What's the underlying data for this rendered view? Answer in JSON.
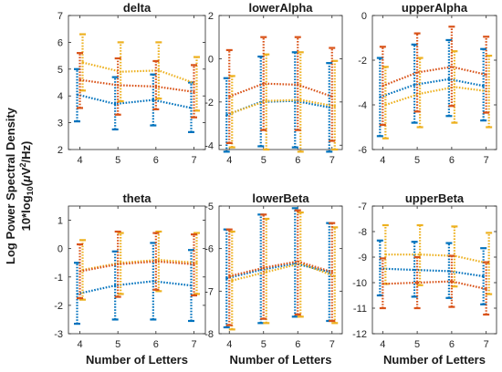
{
  "figure": {
    "ylabel_line1": "Log Power Spectral Density",
    "ylabel_line2": "10*log10(μV²/Hz)",
    "xlabel": "Number of Letters",
    "x_ticks": [
      "4",
      "5",
      "6",
      "7"
    ],
    "colors": {
      "blue": "#0072BD",
      "orange": "#D95319",
      "yellow": "#EDB120"
    }
  },
  "chart_data": [
    {
      "type": "line",
      "title": "delta",
      "xlabel": "",
      "ylabel": "",
      "x": [
        4,
        5,
        6,
        7
      ],
      "ylim": [
        2,
        7
      ],
      "yticks": [
        2,
        3,
        4,
        5,
        6,
        7
      ],
      "series": [
        {
          "color": "blue",
          "values": [
            4.05,
            3.7,
            3.85,
            3.55
          ],
          "lower": [
            3.05,
            2.75,
            2.9,
            2.65
          ],
          "upper": [
            5.0,
            4.7,
            4.8,
            4.5
          ]
        },
        {
          "color": "orange",
          "values": [
            4.6,
            4.4,
            4.35,
            4.15
          ],
          "lower": [
            3.55,
            3.3,
            3.5,
            3.2
          ],
          "upper": [
            5.6,
            5.4,
            5.3,
            5.15
          ]
        },
        {
          "color": "yellow",
          "values": [
            5.25,
            4.9,
            4.95,
            4.45
          ],
          "lower": [
            4.2,
            3.8,
            3.9,
            3.45
          ],
          "upper": [
            6.3,
            6.0,
            6.0,
            5.45
          ]
        }
      ]
    },
    {
      "type": "line",
      "title": "lowerAlpha",
      "xlabel": "",
      "ylabel": "",
      "x": [
        4,
        5,
        6,
        7
      ],
      "ylim": [
        -4.2,
        2
      ],
      "yticks": [
        -4,
        -2,
        0,
        2
      ],
      "series": [
        {
          "color": "blue",
          "values": [
            -2.6,
            -2.0,
            -1.95,
            -2.25
          ],
          "lower": [
            -4.3,
            -4.05,
            -4.1,
            -4.3
          ],
          "upper": [
            -0.9,
            0.1,
            0.3,
            -0.2
          ]
        },
        {
          "color": "orange",
          "values": [
            -1.75,
            -1.15,
            -1.2,
            -1.75
          ],
          "lower": [
            -3.9,
            -3.3,
            -3.3,
            -3.8
          ],
          "upper": [
            0.4,
            1.0,
            1.0,
            0.5
          ]
        },
        {
          "color": "yellow",
          "values": [
            -2.5,
            -1.95,
            -1.9,
            -2.2
          ],
          "lower": [
            -4.1,
            -4.2,
            -4.3,
            -4.2
          ],
          "upper": [
            -0.8,
            0.2,
            0.3,
            -0.1
          ]
        }
      ]
    },
    {
      "type": "line",
      "title": "upperAlpha",
      "xlabel": "",
      "ylabel": "",
      "x": [
        4,
        5,
        6,
        7
      ],
      "ylim": [
        -6,
        0
      ],
      "yticks": [
        -6,
        -4,
        -2,
        0
      ],
      "series": [
        {
          "color": "blue",
          "values": [
            -3.65,
            -3.1,
            -2.85,
            -3.15
          ],
          "lower": [
            -5.4,
            -4.8,
            -4.5,
            -4.7
          ],
          "upper": [
            -1.9,
            -1.3,
            -1.1,
            -1.5
          ]
        },
        {
          "color": "orange",
          "values": [
            -3.15,
            -2.55,
            -2.3,
            -2.65
          ],
          "lower": [
            -4.9,
            -4.3,
            -4.05,
            -4.35
          ],
          "upper": [
            -1.4,
            -0.8,
            -0.5,
            -0.95
          ]
        },
        {
          "color": "yellow",
          "values": [
            -4.0,
            -3.5,
            -3.2,
            -3.4
          ],
          "lower": [
            -5.5,
            -5.0,
            -4.8,
            -5.0
          ],
          "upper": [
            -2.3,
            -1.9,
            -1.6,
            -1.8
          ]
        }
      ]
    },
    {
      "type": "line",
      "title": "theta",
      "xlabel": "",
      "ylabel": "",
      "x": [
        4,
        5,
        6,
        7
      ],
      "ylim": [
        -3,
        1.5
      ],
      "yticks": [
        -3,
        -2,
        -1,
        0,
        1
      ],
      "series": [
        {
          "color": "blue",
          "values": [
            -1.6,
            -1.3,
            -1.15,
            -1.3
          ],
          "lower": [
            -2.65,
            -2.5,
            -2.5,
            -2.55
          ],
          "upper": [
            -0.5,
            -0.1,
            0.2,
            -0.05
          ]
        },
        {
          "color": "orange",
          "values": [
            -0.8,
            -0.55,
            -0.45,
            -0.55
          ],
          "lower": [
            -1.75,
            -1.7,
            -1.45,
            -1.65
          ],
          "upper": [
            0.15,
            0.6,
            0.55,
            0.5
          ]
        },
        {
          "color": "yellow",
          "values": [
            -0.75,
            -0.5,
            -0.4,
            -0.5
          ],
          "lower": [
            -1.8,
            -1.6,
            -1.5,
            -1.6
          ],
          "upper": [
            0.3,
            0.55,
            0.6,
            0.55
          ]
        }
      ]
    },
    {
      "type": "line",
      "title": "lowerBeta",
      "xlabel": "",
      "ylabel": "",
      "x": [
        4,
        5,
        6,
        7
      ],
      "ylim": [
        -8,
        -5
      ],
      "yticks": [
        -8,
        -7,
        -6,
        -5
      ],
      "series": [
        {
          "color": "blue",
          "values": [
            -6.7,
            -6.5,
            -6.35,
            -6.55
          ],
          "lower": [
            -7.85,
            -7.75,
            -7.6,
            -7.7
          ],
          "upper": [
            -5.55,
            -5.2,
            -5.05,
            -5.4
          ]
        },
        {
          "color": "orange",
          "values": [
            -6.65,
            -6.45,
            -6.3,
            -6.55
          ],
          "lower": [
            -7.8,
            -7.65,
            -7.55,
            -7.7
          ],
          "upper": [
            -5.55,
            -5.2,
            -5.1,
            -5.4
          ]
        },
        {
          "color": "yellow",
          "values": [
            -6.75,
            -6.55,
            -6.35,
            -6.65
          ],
          "lower": [
            -7.9,
            -7.75,
            -7.6,
            -7.75
          ],
          "upper": [
            -5.6,
            -5.3,
            -5.15,
            -5.5
          ]
        }
      ]
    },
    {
      "type": "line",
      "title": "upperBeta",
      "xlabel": "",
      "ylabel": "",
      "x": [
        4,
        5,
        6,
        7
      ],
      "ylim": [
        -12,
        -7
      ],
      "yticks": [
        -12,
        -11,
        -10,
        -9,
        -8,
        -7
      ],
      "series": [
        {
          "color": "blue",
          "values": [
            -9.45,
            -9.5,
            -9.55,
            -9.75
          ],
          "lower": [
            -10.5,
            -10.55,
            -10.6,
            -10.85
          ],
          "upper": [
            -8.35,
            -8.4,
            -8.45,
            -8.65
          ]
        },
        {
          "color": "orange",
          "values": [
            -10.05,
            -10.0,
            -9.95,
            -10.25
          ],
          "lower": [
            -11.0,
            -11.0,
            -10.95,
            -11.25
          ],
          "upper": [
            -9.05,
            -9.0,
            -8.95,
            -9.2
          ]
        },
        {
          "color": "yellow",
          "values": [
            -8.9,
            -8.9,
            -8.95,
            -9.25
          ],
          "lower": [
            -10.05,
            -10.1,
            -10.15,
            -10.45
          ],
          "upper": [
            -7.75,
            -7.75,
            -7.8,
            -8.05
          ]
        }
      ]
    }
  ]
}
